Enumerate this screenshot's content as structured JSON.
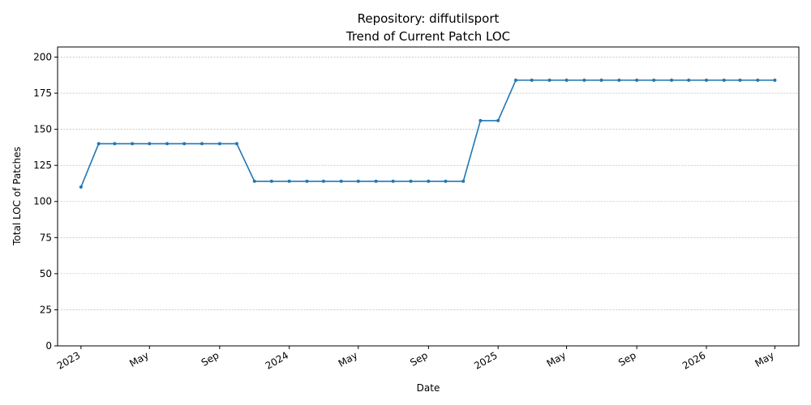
{
  "chart_data": {
    "type": "line",
    "title": "Repository: diffutilsport",
    "subtitle": "Trend of Current Patch LOC",
    "xlabel": "Date",
    "ylabel": "Total LOC of Patches",
    "ylim": [
      0,
      207
    ],
    "xlim": [
      "2022-11-21",
      "2026-06-12"
    ],
    "grid": "y-dashed",
    "yticks": [
      0,
      25,
      50,
      75,
      100,
      125,
      150,
      175,
      200
    ],
    "xticks": [
      {
        "date": "2023-01-01",
        "label": "2023"
      },
      {
        "date": "2023-05-01",
        "label": "May"
      },
      {
        "date": "2023-09-01",
        "label": "Sep"
      },
      {
        "date": "2024-01-01",
        "label": "2024"
      },
      {
        "date": "2024-05-01",
        "label": "May"
      },
      {
        "date": "2024-09-01",
        "label": "Sep"
      },
      {
        "date": "2025-01-01",
        "label": "2025"
      },
      {
        "date": "2025-05-01",
        "label": "May"
      },
      {
        "date": "2025-09-01",
        "label": "Sep"
      },
      {
        "date": "2026-01-01",
        "label": "2026"
      },
      {
        "date": "2026-05-01",
        "label": "May"
      }
    ],
    "series": [
      {
        "color": "#1f77b4",
        "points": [
          [
            "2023-01-01",
            110
          ],
          [
            "2023-02-01",
            140
          ],
          [
            "2023-03-01",
            140
          ],
          [
            "2023-04-01",
            140
          ],
          [
            "2023-05-01",
            140
          ],
          [
            "2023-06-01",
            140
          ],
          [
            "2023-07-01",
            140
          ],
          [
            "2023-08-01",
            140
          ],
          [
            "2023-09-01",
            140
          ],
          [
            "2023-10-01",
            140
          ],
          [
            "2023-11-01",
            114
          ],
          [
            "2023-12-01",
            114
          ],
          [
            "2024-01-01",
            114
          ],
          [
            "2024-02-01",
            114
          ],
          [
            "2024-03-01",
            114
          ],
          [
            "2024-04-01",
            114
          ],
          [
            "2024-05-01",
            114
          ],
          [
            "2024-06-01",
            114
          ],
          [
            "2024-07-01",
            114
          ],
          [
            "2024-08-01",
            114
          ],
          [
            "2024-09-01",
            114
          ],
          [
            "2024-10-01",
            114
          ],
          [
            "2024-11-01",
            114
          ],
          [
            "2024-12-01",
            156
          ],
          [
            "2025-01-01",
            156
          ],
          [
            "2025-02-01",
            184
          ],
          [
            "2025-03-01",
            184
          ],
          [
            "2025-04-01",
            184
          ],
          [
            "2025-05-01",
            184
          ],
          [
            "2025-06-01",
            184
          ],
          [
            "2025-07-01",
            184
          ],
          [
            "2025-08-01",
            184
          ],
          [
            "2025-09-01",
            184
          ],
          [
            "2025-10-01",
            184
          ],
          [
            "2025-11-01",
            184
          ],
          [
            "2025-12-01",
            184
          ],
          [
            "2026-01-01",
            184
          ],
          [
            "2026-02-01",
            184
          ],
          [
            "2026-03-01",
            184
          ],
          [
            "2026-04-01",
            184
          ],
          [
            "2026-05-01",
            184
          ]
        ]
      }
    ]
  }
}
